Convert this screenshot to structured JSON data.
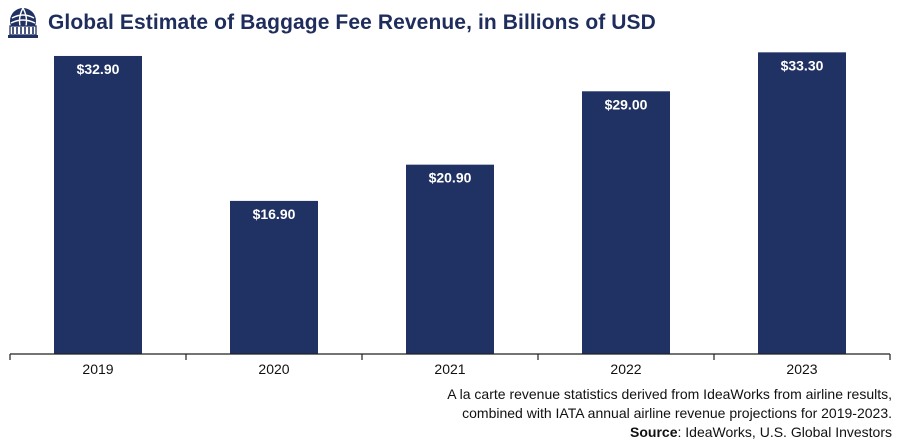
{
  "title": "Global Estimate of Baggage Fee Revenue, in Billions of USD",
  "logo_icon": "globe-building-icon",
  "colors": {
    "bar": "#203163",
    "title": "#1f2d5c",
    "axis": "#222222"
  },
  "chart_data": {
    "type": "bar",
    "title": "Global Estimate of Baggage Fee Revenue, in Billions of USD",
    "categories": [
      "2019",
      "2020",
      "2021",
      "2022",
      "2023"
    ],
    "values": [
      32.9,
      16.9,
      20.9,
      29.0,
      33.3
    ],
    "value_labels": [
      "$32.90",
      "$16.90",
      "$20.90",
      "$29.00",
      "$33.30"
    ],
    "xlabel": "",
    "ylabel": "",
    "ylim": [
      0,
      34
    ],
    "grid": false,
    "legend": "none"
  },
  "footer": {
    "line1": "A la carte revenue statistics derived from IdeaWorks from airline results,",
    "line2": "combined with IATA annual airline revenue projections for 2019-2023.",
    "source_label": "Source",
    "source_text": ": IdeaWorks, U.S. Global Investors"
  }
}
